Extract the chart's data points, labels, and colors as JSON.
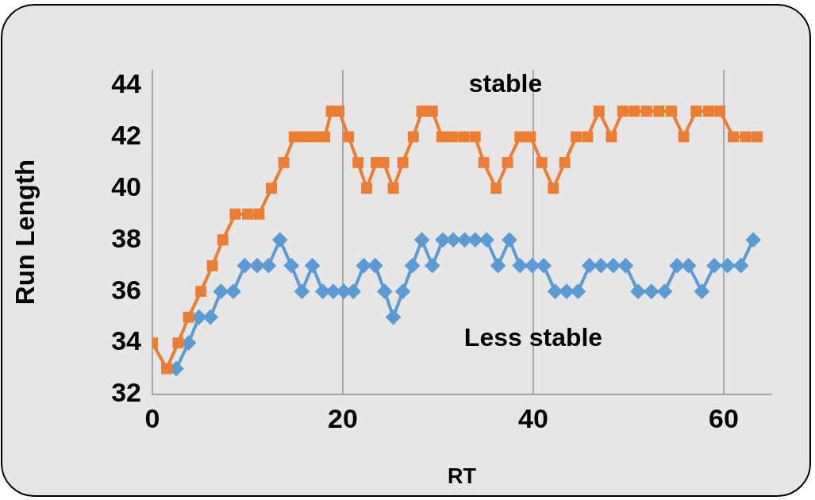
{
  "chart_data": {
    "type": "line",
    "xlabel": "RT",
    "ylabel": "Run Length",
    "xlim": [
      0,
      65
    ],
    "xticks": [
      0,
      20,
      40,
      60
    ],
    "ylim": [
      32,
      44.6
    ],
    "yticks": [
      32,
      34,
      36,
      38,
      40,
      42,
      44
    ],
    "grid": "x",
    "legend": false,
    "line_style": "solid",
    "series": [
      {
        "name": "stable",
        "color": "#ed7d31",
        "marker": "square",
        "x": [
          0,
          1.5,
          2.7,
          3.8,
          5.1,
          6.3,
          7.4,
          8.7,
          10.0,
          11.2,
          12.5,
          13.8,
          14.9,
          16.0,
          17.1,
          18.1,
          18.8,
          19.6,
          20.6,
          21.6,
          22.5,
          23.5,
          24.3,
          25.3,
          26.3,
          27.4,
          28.3,
          29.4,
          30.4,
          31.5,
          32.7,
          33.9,
          34.8,
          36.1,
          37.3,
          38.6,
          39.7,
          40.9,
          42.1,
          43.3,
          44.5,
          45.7,
          46.9,
          48.2,
          49.4,
          50.6,
          51.9,
          53.2,
          54.5,
          55.8,
          57.1,
          58.4,
          59.6,
          61.0,
          62.3,
          63.5
        ],
        "values": [
          34,
          33,
          34,
          35,
          36,
          37,
          38,
          39,
          39,
          39,
          40,
          41,
          42,
          42,
          42,
          42,
          43,
          43,
          42,
          41,
          40,
          41,
          41,
          40,
          41,
          42,
          43,
          43,
          42,
          42,
          42,
          42,
          41,
          40,
          41,
          42,
          42,
          41,
          40,
          41,
          42,
          42,
          43,
          42,
          43,
          43,
          43,
          43,
          43,
          42,
          43,
          43,
          43,
          42,
          42,
          42
        ]
      },
      {
        "name": "Less stable",
        "color": "#5b9bd5",
        "marker": "diamond",
        "x": [
          2.5,
          3.8,
          4.9,
          6.1,
          7.2,
          8.5,
          9.7,
          11.0,
          12.2,
          13.4,
          14.6,
          15.7,
          16.8,
          17.9,
          19.0,
          20.1,
          21.1,
          22.2,
          23.4,
          24.4,
          25.3,
          26.3,
          27.3,
          28.3,
          29.4,
          30.5,
          31.6,
          32.8,
          33.9,
          35.1,
          36.3,
          37.5,
          38.6,
          39.9,
          41.1,
          42.3,
          43.5,
          44.7,
          45.9,
          47.1,
          48.4,
          49.7,
          51.0,
          52.4,
          53.8,
          55.1,
          56.3,
          57.7,
          59.0,
          60.4,
          61.8,
          63.1
        ],
        "values": [
          33,
          34,
          35,
          35,
          36,
          36,
          37,
          37,
          37,
          38,
          37,
          36,
          37,
          36,
          36,
          36,
          36,
          37,
          37,
          36,
          35,
          36,
          37,
          38,
          37,
          38,
          38,
          38,
          38,
          38,
          37,
          38,
          37,
          37,
          37,
          36,
          36,
          36,
          37,
          37,
          37,
          37,
          36,
          36,
          36,
          37,
          37,
          36,
          37,
          37,
          37,
          38
        ]
      }
    ]
  }
}
